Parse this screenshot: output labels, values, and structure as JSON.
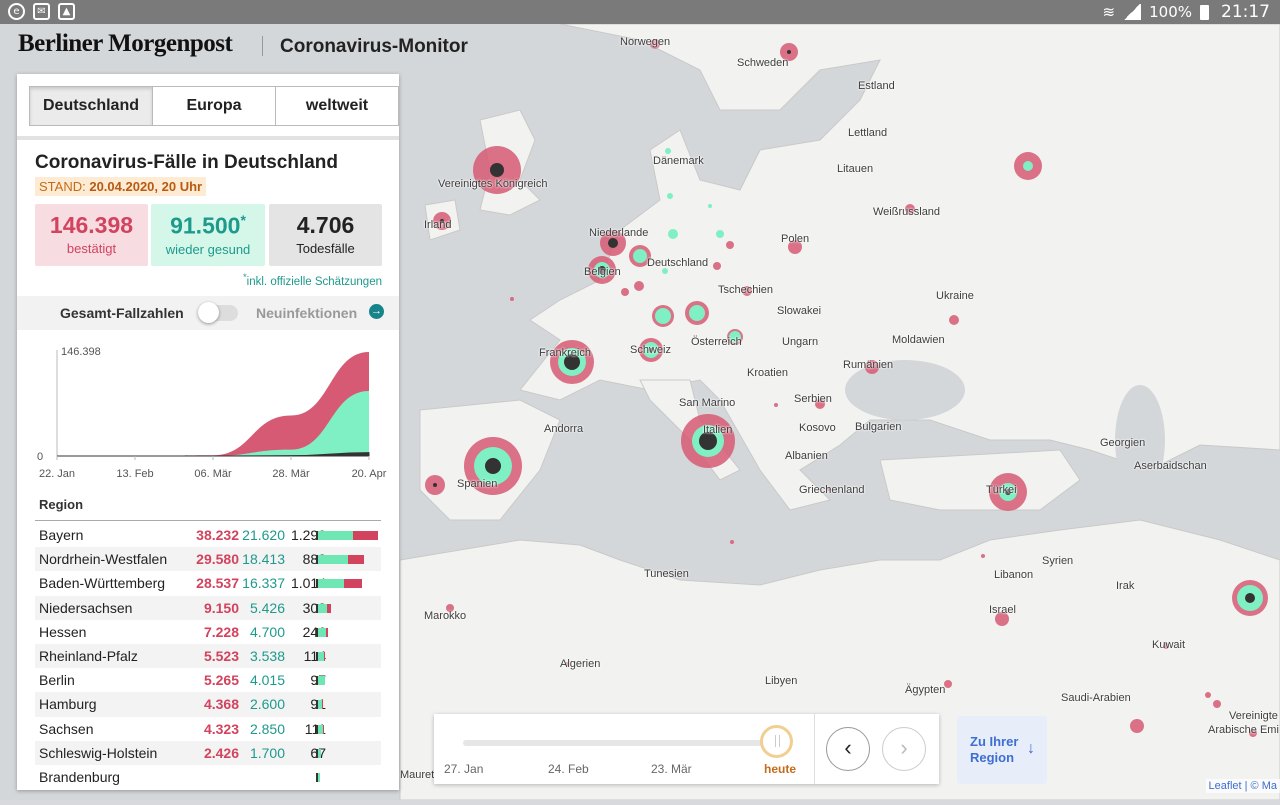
{
  "status_bar": {
    "battery": "100%",
    "time": "21:17"
  },
  "brand": {
    "name": "Berliner Morgenpost",
    "title": "Coronavirus-Monitor"
  },
  "tabs": [
    "Deutschland",
    "Europa",
    "weltweit"
  ],
  "panel": {
    "heading": "Coronavirus-Fälle in Deutschland",
    "stand_label": "STAND:",
    "stand_value": "20.04.2020, 20 Uhr",
    "confirmed": {
      "value": "146.398",
      "label": "bestätigt"
    },
    "recovered": {
      "value": "91.500",
      "mark": "*",
      "label": "wieder gesund"
    },
    "deaths": {
      "value": "4.706",
      "label": "Todesfälle"
    },
    "footnote_mark": "*",
    "footnote": "inkl. offizielle Schätzungen",
    "toggle_total": "Gesamt-Fallzahlen",
    "toggle_new": "Neuinfektionen",
    "region_header": "Region"
  },
  "chart_data": {
    "type": "area",
    "x": [
      "22. Jan",
      "13. Feb",
      "06. Mär",
      "28. Mär",
      "20. Apr"
    ],
    "series": [
      {
        "name": "bestätigt",
        "values": [
          0,
          16,
          1000,
          57000,
          146398
        ]
      },
      {
        "name": "wieder gesund",
        "values": [
          0,
          0,
          50,
          9000,
          91500
        ]
      },
      {
        "name": "Todesfälle",
        "values": [
          0,
          0,
          0,
          450,
          4706
        ]
      }
    ],
    "y_ticks": [
      "0",
      "146.398"
    ],
    "ylim": [
      0,
      146398
    ],
    "colors": {
      "confirmed": "#d65a73",
      "recovered": "#7ff0c3",
      "deaths": "#333333"
    }
  },
  "regions": [
    {
      "name": "Bayern",
      "confirmed": "38.232",
      "recovered": "21.620",
      "deaths": "1.299",
      "c": 38232,
      "r": 21620,
      "d": 1299
    },
    {
      "name": "Nordrhein-Westfalen",
      "confirmed": "29.580",
      "recovered": "18.413",
      "deaths": "882",
      "c": 29580,
      "r": 18413,
      "d": 882
    },
    {
      "name": "Baden-Württemberg",
      "confirmed": "28.537",
      "recovered": "16.337",
      "deaths": "1.014",
      "c": 28537,
      "r": 16337,
      "d": 1014
    },
    {
      "name": "Niedersachsen",
      "confirmed": "9.150",
      "recovered": "5.426",
      "deaths": "303",
      "c": 9150,
      "r": 5426,
      "d": 303
    },
    {
      "name": "Hessen",
      "confirmed": "7.228",
      "recovered": "4.700",
      "deaths": "246",
      "c": 7228,
      "r": 4700,
      "d": 246
    },
    {
      "name": "Rheinland-Pfalz",
      "confirmed": "5.523",
      "recovered": "3.538",
      "deaths": "114",
      "c": 5523,
      "r": 3538,
      "d": 114
    },
    {
      "name": "Berlin",
      "confirmed": "5.265",
      "recovered": "4.015",
      "deaths": "97",
      "c": 5265,
      "r": 4015,
      "d": 97
    },
    {
      "name": "Hamburg",
      "confirmed": "4.368",
      "recovered": "2.600",
      "deaths": "91",
      "c": 4368,
      "r": 2600,
      "d": 91
    },
    {
      "name": "Sachsen",
      "confirmed": "4.323",
      "recovered": "2.850",
      "deaths": "111",
      "c": 4323,
      "r": 2850,
      "d": 111
    },
    {
      "name": "Schleswig-Holstein",
      "confirmed": "2.426",
      "recovered": "1.700",
      "deaths": "67",
      "c": 2426,
      "r": 1700,
      "d": 67
    },
    {
      "name": "Brandenburg",
      "confirmed": "",
      "recovered": "",
      "deaths": "",
      "c": 2306,
      "r": 1300,
      "d": 81
    }
  ],
  "timeline": {
    "labels": [
      "27. Jan",
      "24. Feb",
      "23. Mär"
    ],
    "today": "heute",
    "prev_icon": "chevron-left-icon",
    "next_icon": "chevron-right-icon",
    "position_fraction": 1.0
  },
  "region_button": {
    "label_line1": "Zu Ihrer",
    "label_line2": "Region",
    "arrow": "↓"
  },
  "attribution": "Leaflet | © Ma",
  "map_labels": [
    {
      "text": "Norwegen"
    },
    {
      "text": "Schweden"
    },
    {
      "text": "Estland"
    },
    {
      "text": "Lettland"
    },
    {
      "text": "Dänemark"
    },
    {
      "text": "Litauen"
    },
    {
      "text": "Vereinigtes Königreich"
    },
    {
      "text": "Irland"
    },
    {
      "text": "Weißrussland"
    },
    {
      "text": "Niederlande"
    },
    {
      "text": "Polen"
    },
    {
      "text": "Deutschland"
    },
    {
      "text": "Belgien"
    },
    {
      "text": "Tschechien"
    },
    {
      "text": "Ukraine"
    },
    {
      "text": "Slowakei"
    },
    {
      "text": "Frankreich"
    },
    {
      "text": "Moldawien"
    },
    {
      "text": "Schweiz"
    },
    {
      "text": "Österreich"
    },
    {
      "text": "Ungarn"
    },
    {
      "text": "Rumänien"
    },
    {
      "text": "Kroatien"
    },
    {
      "text": "San Marino"
    },
    {
      "text": "Serbien"
    },
    {
      "text": "Andorra"
    },
    {
      "text": "Kosovo"
    },
    {
      "text": "Bulgarien"
    },
    {
      "text": "Italien"
    },
    {
      "text": "Georgien"
    },
    {
      "text": "Albanien"
    },
    {
      "text": "Aserbaidschan"
    },
    {
      "text": "Spanien"
    },
    {
      "text": "Griechenland"
    },
    {
      "text": "Türkei"
    },
    {
      "text": "Tunesien"
    },
    {
      "text": "Syrien"
    },
    {
      "text": "Libanon"
    },
    {
      "text": "Irak"
    },
    {
      "text": "Marokko"
    },
    {
      "text": "Israel"
    },
    {
      "text": "Algerien"
    },
    {
      "text": "Kuwait"
    },
    {
      "text": "Libyen"
    },
    {
      "text": "Ägypten"
    },
    {
      "text": "Saudi-Arabien"
    },
    {
      "text": "Vereinigte"
    },
    {
      "text": "Arabische Emi"
    },
    {
      "text": "Mauretan"
    }
  ],
  "map_colors": {
    "land": "#f3f3f1",
    "sea": "#d4d7da",
    "confirmed": "#d65a73",
    "recovered": "#7ff0c3",
    "deaths": "#333333"
  }
}
